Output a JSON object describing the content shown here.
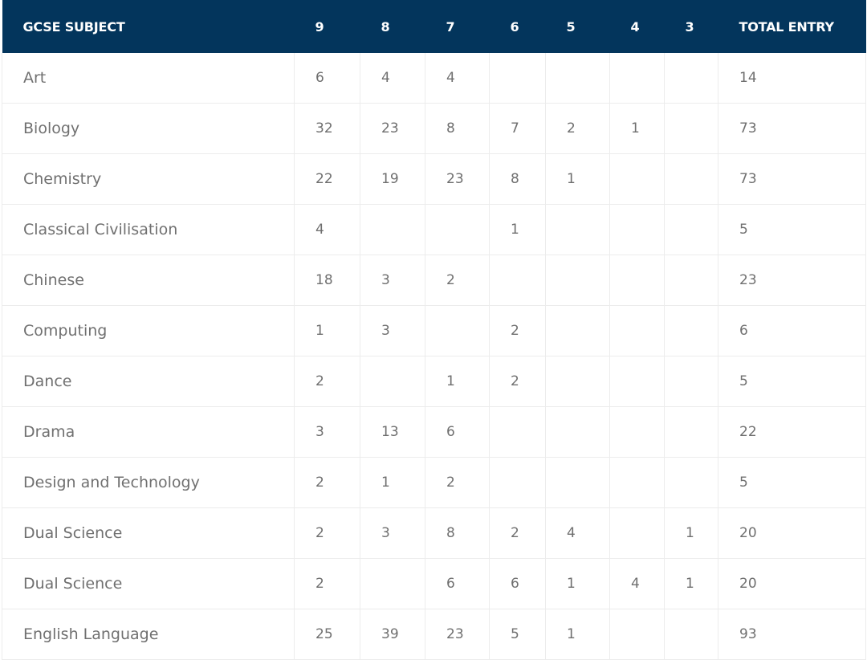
{
  "table": {
    "headers": {
      "subject": "GCSE SUBJECT",
      "grades": [
        "9",
        "8",
        "7",
        "6",
        "5",
        "4",
        "3"
      ],
      "total": "TOTAL ENTRY"
    },
    "rows": [
      {
        "subject": "Art",
        "grades": [
          "6",
          "4",
          "4",
          "",
          "",
          "",
          ""
        ],
        "total": "14"
      },
      {
        "subject": "Biology",
        "grades": [
          "32",
          "23",
          "8",
          "7",
          "2",
          "1",
          ""
        ],
        "total": "73"
      },
      {
        "subject": "Chemistry",
        "grades": [
          "22",
          "19",
          "23",
          "8",
          "1",
          "",
          ""
        ],
        "total": "73"
      },
      {
        "subject": "Classical Civilisation",
        "grades": [
          "4",
          "",
          "",
          "1",
          "",
          "",
          ""
        ],
        "total": "5"
      },
      {
        "subject": "Chinese",
        "grades": [
          "18",
          "3",
          "2",
          "",
          "",
          "",
          ""
        ],
        "total": "23"
      },
      {
        "subject": "Computing",
        "grades": [
          "1",
          "3",
          "",
          "2",
          "",
          "",
          ""
        ],
        "total": "6"
      },
      {
        "subject": "Dance",
        "grades": [
          "2",
          "",
          "1",
          "2",
          "",
          "",
          ""
        ],
        "total": "5"
      },
      {
        "subject": "Drama",
        "grades": [
          "3",
          "13",
          "6",
          "",
          "",
          "",
          ""
        ],
        "total": "22"
      },
      {
        "subject": "Design and Technology",
        "grades": [
          "2",
          "1",
          "2",
          "",
          "",
          "",
          ""
        ],
        "total": "5"
      },
      {
        "subject": "Dual Science",
        "grades": [
          "2",
          "3",
          "8",
          "2",
          "4",
          "",
          "1"
        ],
        "total": "20"
      },
      {
        "subject": "Dual Science",
        "grades": [
          "2",
          "",
          "6",
          "6",
          "1",
          "4",
          "1"
        ],
        "total": "20"
      },
      {
        "subject": "English Language",
        "grades": [
          "25",
          "39",
          "23",
          "5",
          "1",
          "",
          ""
        ],
        "total": "93"
      }
    ]
  }
}
